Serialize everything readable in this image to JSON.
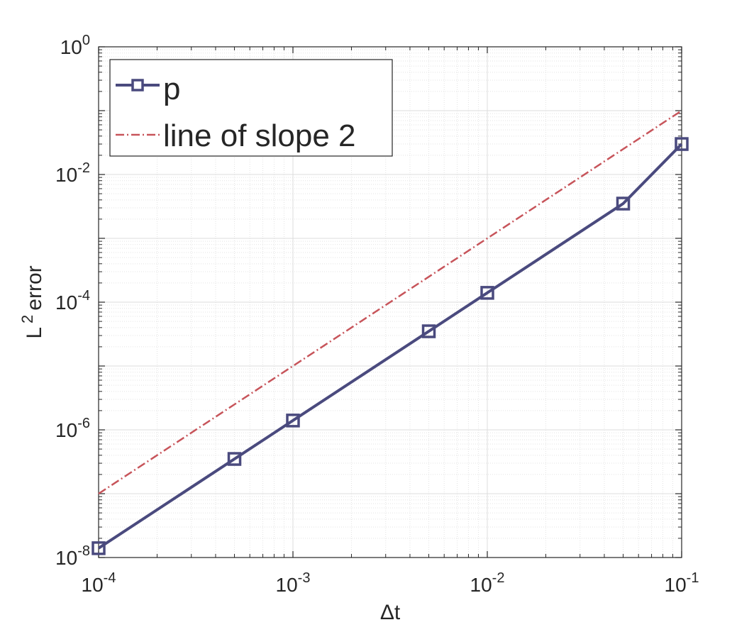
{
  "chart_data": {
    "type": "line",
    "title": "",
    "xlabel": "Δt",
    "ylabel": "L",
    "ylabel_superscript": "2",
    "ylabel_suffix": "error",
    "xscale": "log",
    "yscale": "log",
    "xlim": [
      0.0001,
      0.1
    ],
    "ylim": [
      1e-08,
      1
    ],
    "xticks": [
      {
        "value": 0.0001,
        "base": "10",
        "exp": "-4"
      },
      {
        "value": 0.001,
        "base": "10",
        "exp": "-3"
      },
      {
        "value": 0.01,
        "base": "10",
        "exp": "-2"
      },
      {
        "value": 0.1,
        "base": "10",
        "exp": "-1"
      }
    ],
    "yticks": [
      {
        "value": 1e-08,
        "base": "10",
        "exp": "-8"
      },
      {
        "value": 1e-06,
        "base": "10",
        "exp": "-6"
      },
      {
        "value": 0.0001,
        "base": "10",
        "exp": "-4"
      },
      {
        "value": 0.01,
        "base": "10",
        "exp": "-2"
      },
      {
        "value": 1,
        "base": "10",
        "exp": "0"
      }
    ],
    "grid": true,
    "minor_grid": true,
    "legend_position": "top-left",
    "series": [
      {
        "name": "p",
        "color": "#4a4a7e",
        "line_style": "solid",
        "marker": "square",
        "x": [
          0.0001,
          0.0005,
          0.001,
          0.005,
          0.01,
          0.05,
          0.1
        ],
        "y": [
          1.4e-08,
          3.5e-07,
          1.4e-06,
          3.5e-05,
          0.00014,
          0.0035,
          0.03
        ]
      },
      {
        "name": "line of slope 2",
        "color": "#c7545a",
        "line_style": "dashdot",
        "marker": "none",
        "x": [
          0.0001,
          0.1
        ],
        "y": [
          1e-07,
          0.1
        ]
      }
    ]
  }
}
